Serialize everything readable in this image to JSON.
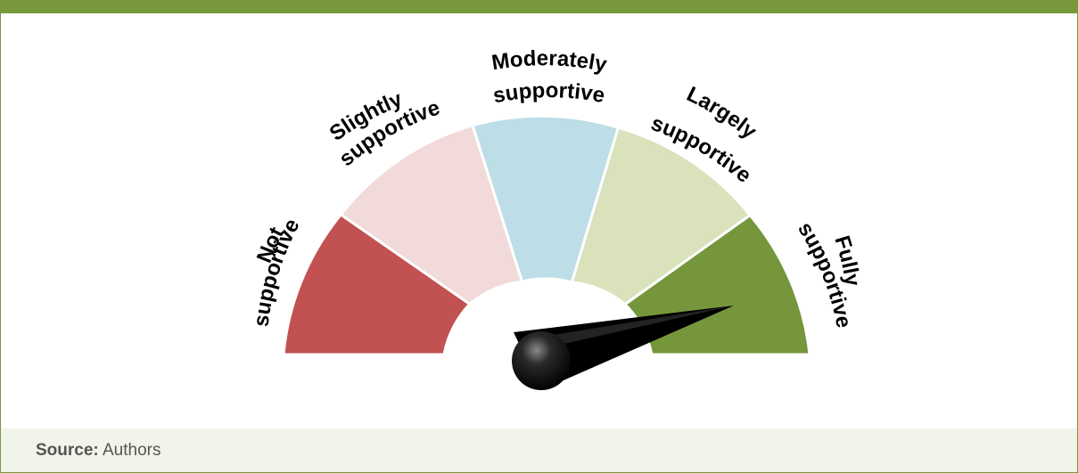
{
  "figure": {
    "title": "",
    "needle_level": "Fully supportive"
  },
  "gauge": {
    "segments": [
      {
        "label_line1": "Not",
        "label_line2": "supportive",
        "color": "#c25151"
      },
      {
        "label_line1": "Slightly",
        "label_line2": "supportive",
        "color": "#f2dada"
      },
      {
        "label_line1": "Moderately",
        "label_line2": "supportive",
        "color": "#bddde7"
      },
      {
        "label_line1": "Largely",
        "label_line2": "supportive",
        "color": "#d9e2bb"
      },
      {
        "label_line1": "Fully",
        "label_line2": "supportive",
        "color": "#76963b"
      }
    ]
  },
  "source": {
    "label": "Source:",
    "value": "Authors"
  },
  "colors": {
    "accent": "#78993b",
    "source_background": "#f1f4e8",
    "needle": "#000000"
  }
}
